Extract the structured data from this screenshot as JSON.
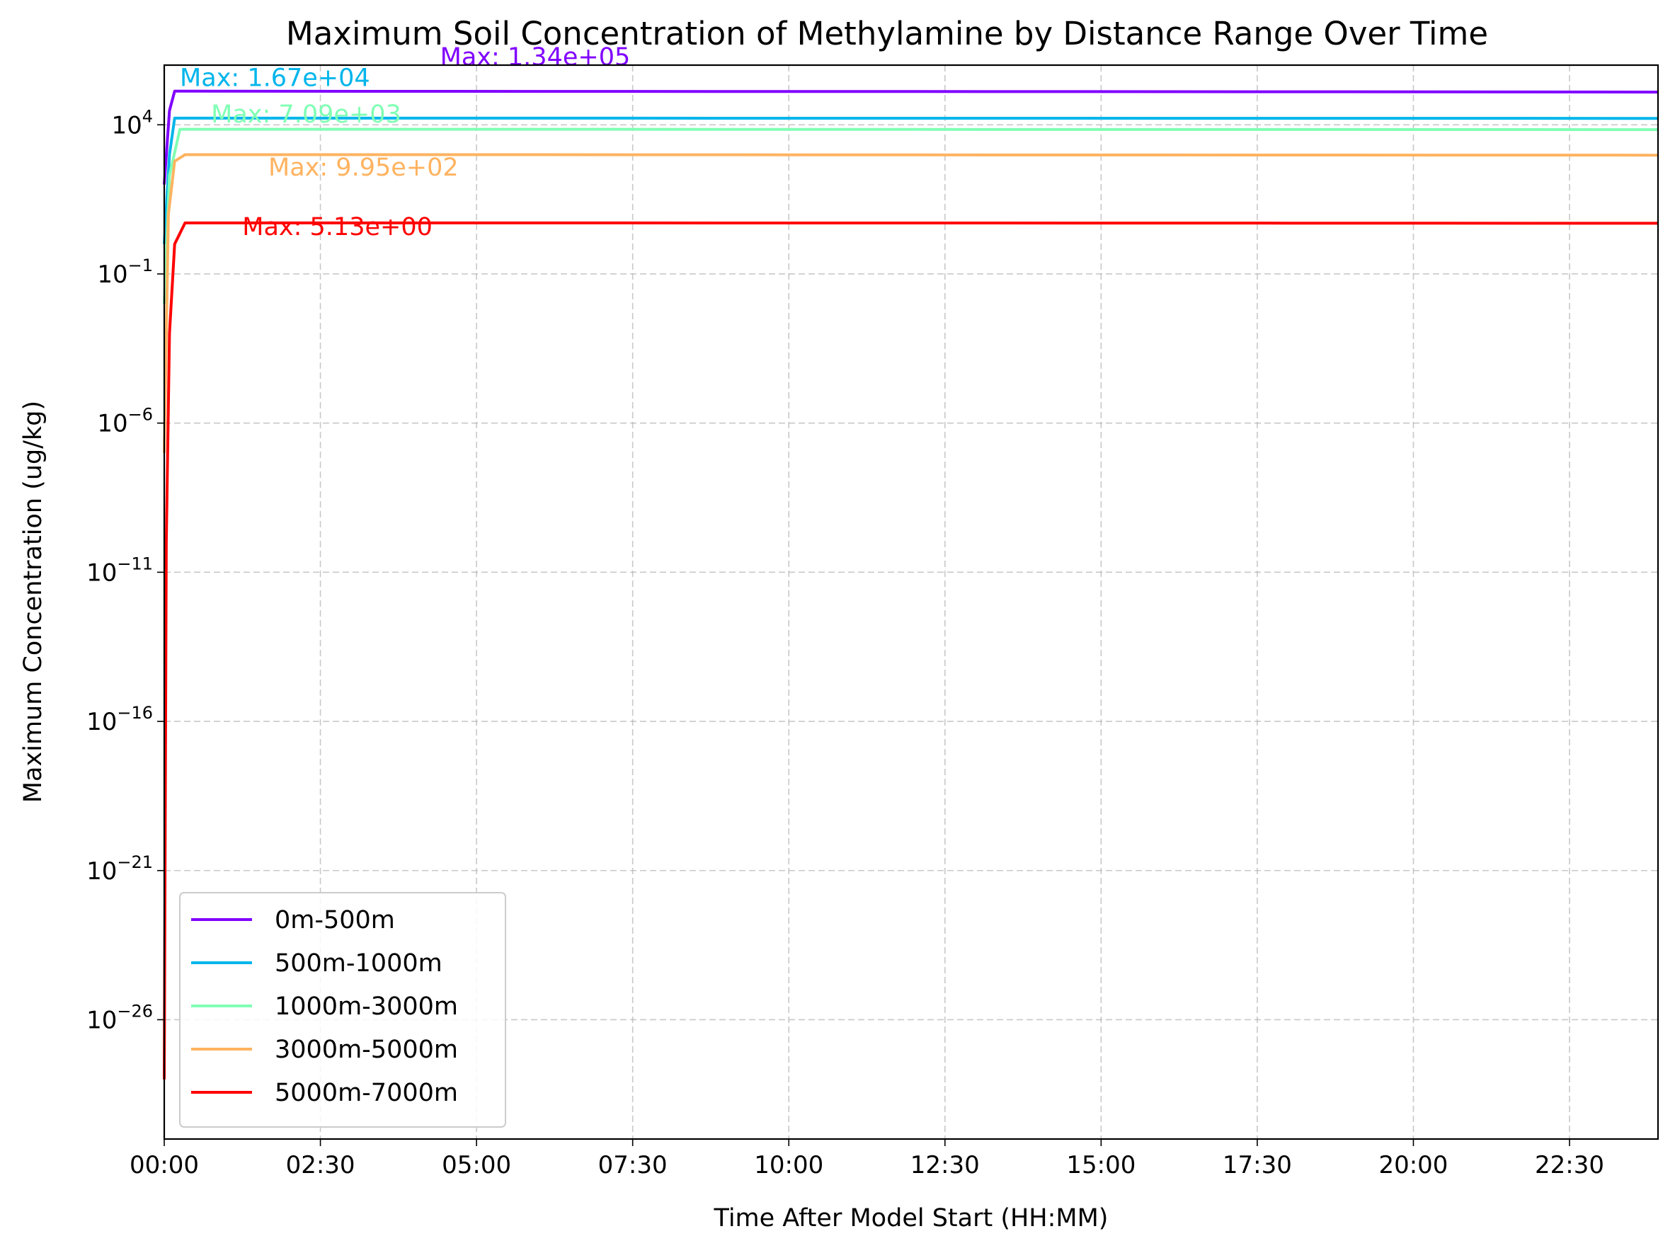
{
  "chart_data": {
    "type": "line",
    "title": "Maximum Soil Concentration of Methylamine by Distance Range Over Time",
    "xlabel": "Time After Model Start (HH:MM)",
    "ylabel": "Maximum Concentration (ug/kg)",
    "x_unit": "HH:MM",
    "xlim": [
      "00:00",
      "23:55"
    ],
    "yscale": "log",
    "ylim": [
      1e-30,
      1000000.0
    ],
    "xticks": [
      "00:00",
      "02:30",
      "05:00",
      "07:30",
      "10:00",
      "12:30",
      "15:00",
      "17:30",
      "20:00",
      "22:30"
    ],
    "yticks": [
      {
        "base": "10",
        "exp": "4"
      },
      {
        "base": "10",
        "exp": "−1"
      },
      {
        "base": "10",
        "exp": "−6"
      },
      {
        "base": "10",
        "exp": "−11"
      },
      {
        "base": "10",
        "exp": "−16"
      },
      {
        "base": "10",
        "exp": "−21"
      },
      {
        "base": "10",
        "exp": "−26"
      }
    ],
    "grid": true,
    "legend_position": "lower-left",
    "series": [
      {
        "name": "0m-500m",
        "color": "#8000ff",
        "points": [
          [
            "00:00",
            100
          ],
          [
            "00:05",
            30000
          ],
          [
            "00:10",
            134000
          ],
          [
            "06:00",
            132000
          ],
          [
            "12:00",
            130000
          ],
          [
            "18:00",
            128000
          ],
          [
            "23:55",
            125000
          ]
        ],
        "max_label": "Max: 1.34e+05"
      },
      {
        "name": "500m-1000m",
        "color": "#00b5eb",
        "points": [
          [
            "00:00",
            1
          ],
          [
            "00:05",
            1000
          ],
          [
            "00:10",
            16700
          ],
          [
            "06:00",
            16700
          ],
          [
            "12:00",
            16600
          ],
          [
            "18:00",
            16500
          ],
          [
            "23:55",
            16400
          ]
        ],
        "max_label": "Max: 1.67e+04"
      },
      {
        "name": "1000m-3000m",
        "color": "#80ffb4",
        "points": [
          [
            "00:00",
            0.01
          ],
          [
            "00:05",
            200
          ],
          [
            "00:15",
            7090
          ],
          [
            "06:00",
            7090
          ],
          [
            "12:00",
            7000
          ],
          [
            "18:00",
            6950
          ],
          [
            "23:55",
            6900
          ]
        ],
        "max_label": "Max: 7.09e+03"
      },
      {
        "name": "3000m-5000m",
        "color": "#ffb360",
        "points": [
          [
            "00:00",
            1e-07
          ],
          [
            "00:04",
            10
          ],
          [
            "00:10",
            600
          ],
          [
            "00:20",
            995
          ],
          [
            "06:00",
            995
          ],
          [
            "12:00",
            980
          ],
          [
            "18:00",
            970
          ],
          [
            "23:55",
            960
          ]
        ],
        "max_label": "Max: 9.95e+02"
      },
      {
        "name": "5000m-7000m",
        "color": "#ff0000",
        "points": [
          [
            "00:00",
            1e-28
          ],
          [
            "00:02",
            1e-10
          ],
          [
            "00:05",
            0.001
          ],
          [
            "00:10",
            1
          ],
          [
            "00:20",
            5.13
          ],
          [
            "06:00",
            5.13
          ],
          [
            "12:00",
            5.1
          ],
          [
            "18:00",
            5.05
          ],
          [
            "23:55",
            5.0
          ]
        ],
        "max_label": "Max: 5.13e+00"
      }
    ],
    "annotations": [
      {
        "text": "Max: 1.34e+05",
        "series": "0m-500m",
        "x": "04:25",
        "y": 1000000
      },
      {
        "text": "Max: 1.67e+04",
        "series": "500m-1000m",
        "x": "00:15",
        "y": 200000
      },
      {
        "text": "Max: 7.09e+03",
        "series": "1000m-3000m",
        "x": "00:45",
        "y": 12000
      },
      {
        "text": "Max: 9.95e+02",
        "series": "3000m-5000m",
        "x": "01:40",
        "y": 200
      },
      {
        "text": "Max: 5.13e+00",
        "series": "5000m-7000m",
        "x": "01:15",
        "y": 2
      }
    ]
  }
}
